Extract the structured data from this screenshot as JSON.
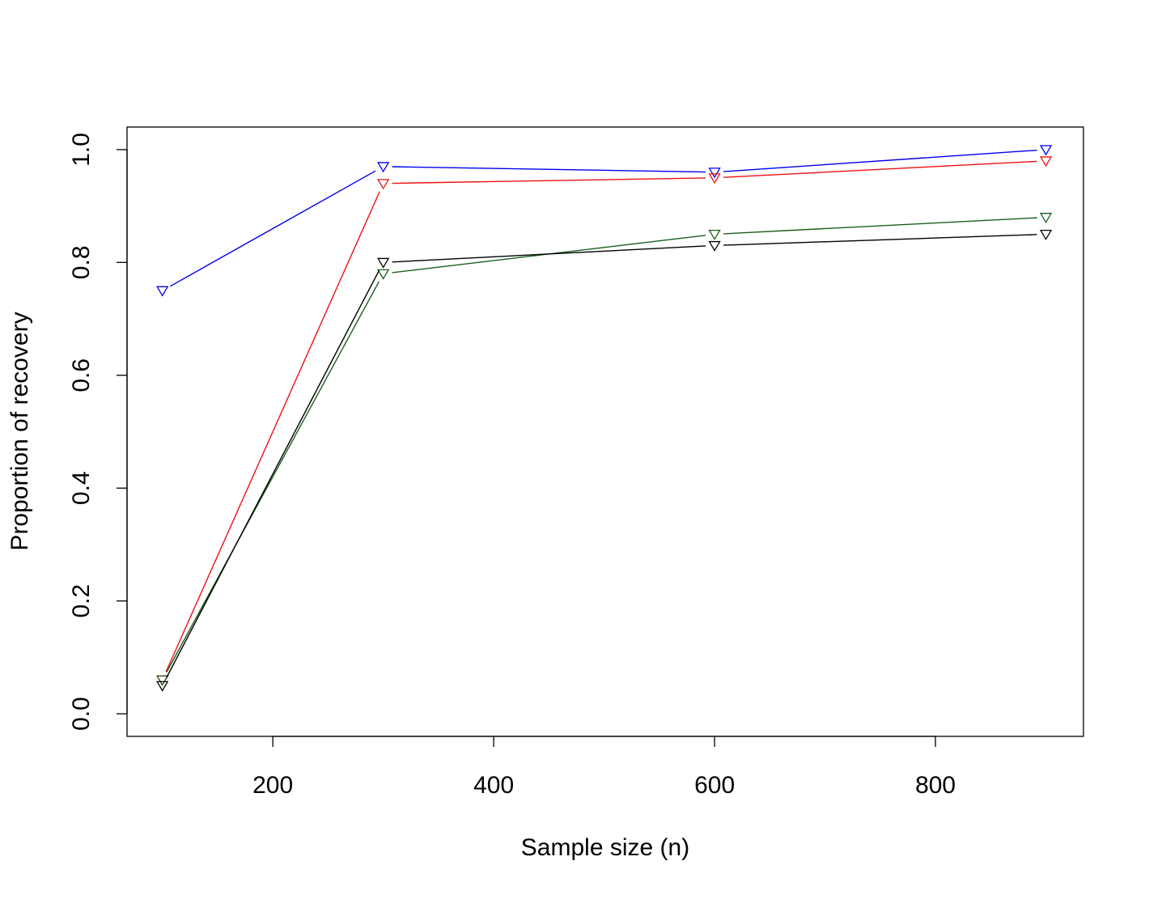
{
  "chart_data": {
    "type": "line",
    "title": "",
    "xlabel": "Sample size (n)",
    "ylabel": "Proportion of recovery",
    "x": [
      100,
      300,
      600,
      900
    ],
    "xlim": [
      68,
      934
    ],
    "ylim": [
      -0.04,
      1.04
    ],
    "xticks": [
      200,
      400,
      600,
      800
    ],
    "xtick_labels": [
      "200",
      "400",
      "600",
      "800"
    ],
    "yticks": [
      0.0,
      0.2,
      0.4,
      0.6,
      0.8,
      1.0
    ],
    "ytick_labels": [
      "0.0",
      "0.2",
      "0.4",
      "0.6",
      "0.8",
      "1.0"
    ],
    "grid": false,
    "legend": "none",
    "marker": "down-triangle",
    "series": [
      {
        "color": "#0000ee",
        "values": [
          0.75,
          0.97,
          0.96,
          1.0
        ]
      },
      {
        "color": "#ee1111",
        "values": [
          0.06,
          0.94,
          0.95,
          0.98
        ]
      },
      {
        "color": "#1a5e1a",
        "values": [
          0.06,
          0.78,
          0.85,
          0.88
        ]
      },
      {
        "color": "#000000",
        "values": [
          0.05,
          0.8,
          0.83,
          0.85
        ]
      }
    ]
  }
}
